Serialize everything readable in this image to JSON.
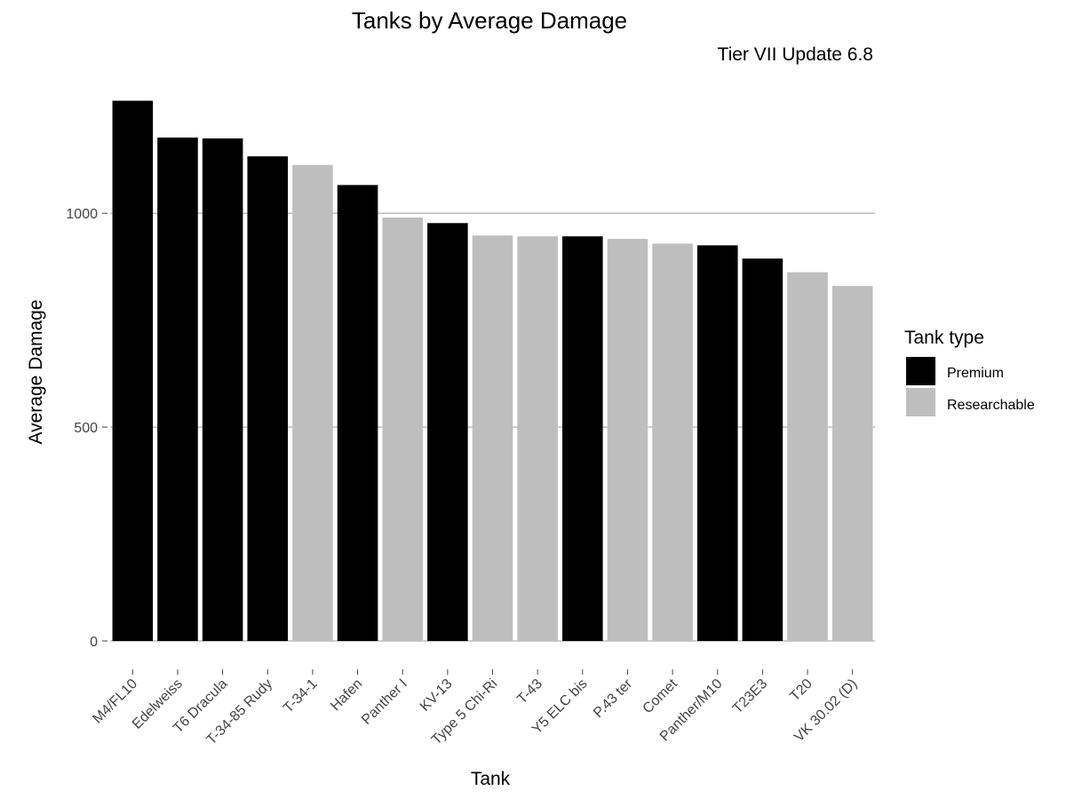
{
  "chart_data": {
    "type": "bar",
    "title": "Tanks by Average Damage",
    "subtitle": "Tier VII Update 6.8",
    "xlabel": "Tank",
    "ylabel": "Average Damage",
    "ylim": [
      0,
      1270
    ],
    "yticks": [
      0,
      500,
      1000
    ],
    "grid": "horizontal major",
    "legend": {
      "title": "Tank type",
      "position": "right",
      "entries": [
        {
          "name": "Premium",
          "color": "#000000"
        },
        {
          "name": "Researchable",
          "color": "#bebebe"
        }
      ]
    },
    "categories": [
      "M4/FL10",
      "Edelweiss",
      "T6 Dracula",
      "T-34-85 Rudy",
      "T-34-1",
      "Hafen",
      "Panther I",
      "KV-13",
      "Type 5 Chi-Ri",
      "T-43",
      "Y5 ELC bis",
      "P.43 ter",
      "Comet",
      "Panther/M10",
      "T23E3",
      "T20",
      "VK 30.02 (D)"
    ],
    "values": [
      1263,
      1177,
      1175,
      1133,
      1113,
      1066,
      990,
      977,
      948,
      946,
      946,
      940,
      929,
      925,
      894,
      862,
      830
    ],
    "types": [
      "Premium",
      "Premium",
      "Premium",
      "Premium",
      "Researchable",
      "Premium",
      "Researchable",
      "Premium",
      "Researchable",
      "Researchable",
      "Premium",
      "Researchable",
      "Researchable",
      "Premium",
      "Premium",
      "Researchable",
      "Researchable"
    ]
  }
}
